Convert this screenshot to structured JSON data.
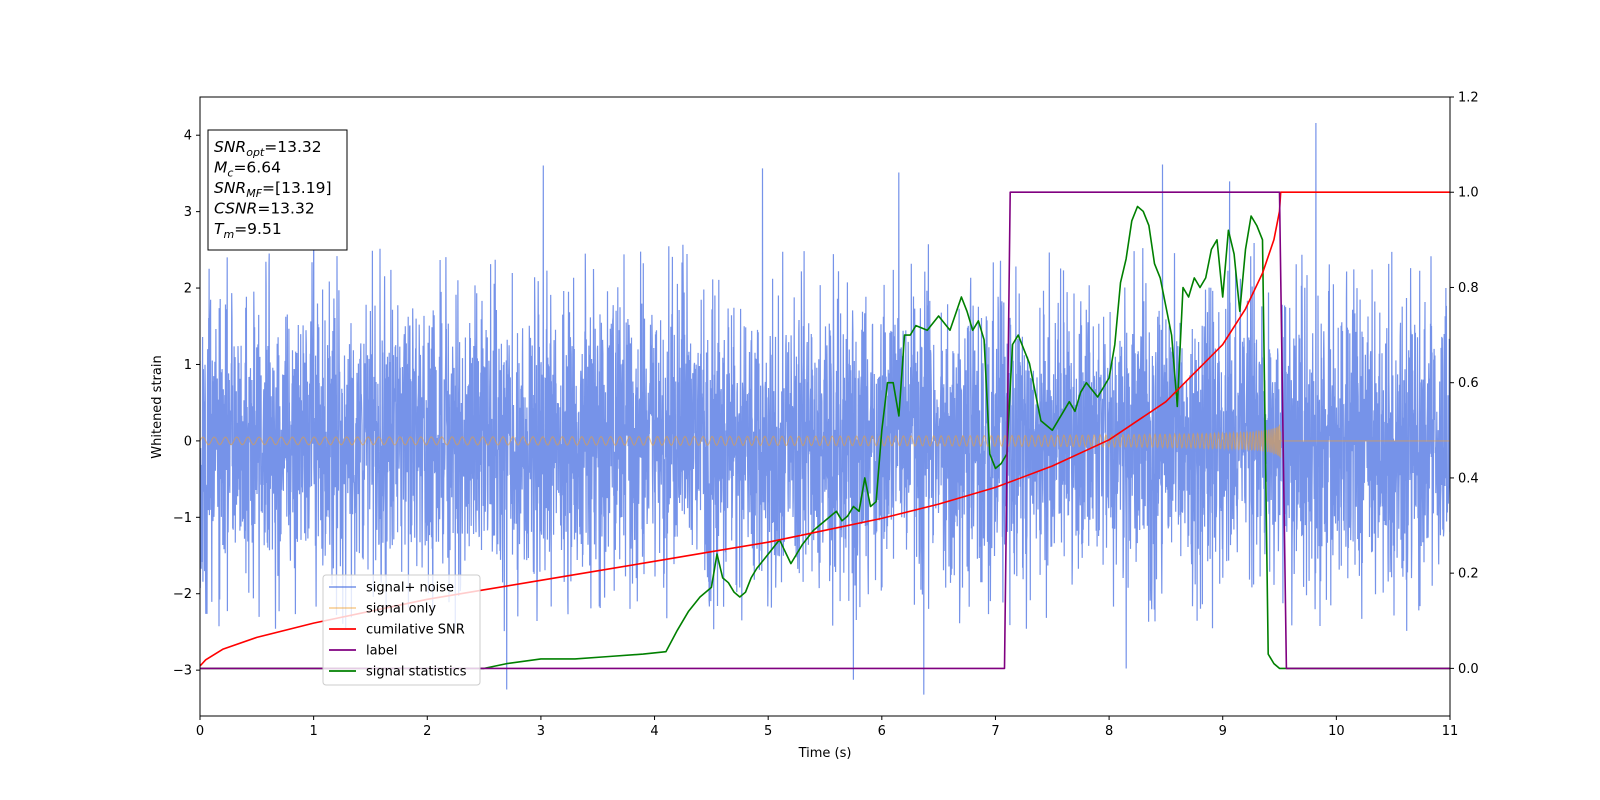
{
  "chart_data": {
    "type": "line",
    "xlabel": "Time (s)",
    "ylabel": "Whitened strain",
    "xlim": [
      0,
      11
    ],
    "ylim_left": [
      -3.6,
      4.5
    ],
    "ylim_right": [
      -0.1,
      1.2
    ],
    "x_ticks": [
      "0",
      "1",
      "2",
      "3",
      "4",
      "5",
      "6",
      "7",
      "8",
      "9",
      "10",
      "11"
    ],
    "y_ticks_left": [
      "−3",
      "−2",
      "−1",
      "0",
      "1",
      "2",
      "3",
      "4"
    ],
    "y_ticks_left_values": [
      -3,
      -2,
      -1,
      0,
      1,
      2,
      3,
      4
    ],
    "y_ticks_right": [
      "0.0",
      "0.2",
      "0.4",
      "0.6",
      "0.8",
      "1.0",
      "1.2"
    ],
    "y_ticks_right_values": [
      0.0,
      0.2,
      0.4,
      0.6,
      0.8,
      1.0,
      1.2
    ],
    "grid": false,
    "legend_position": "lower-left",
    "annotation": {
      "lines": [
        {
          "base": "SNR",
          "sub": "opt",
          "rest": "=13.32"
        },
        {
          "base": "M",
          "sub": "c",
          "rest": "=6.64"
        },
        {
          "base": "SNR",
          "sub": "MF",
          "rest": "=[13.19]"
        },
        {
          "base": "CSNR",
          "sub": "",
          "rest": "=13.32"
        },
        {
          "base": "T",
          "sub": "m",
          "rest": "=9.51"
        }
      ]
    },
    "series": [
      {
        "name": "signal+ noise",
        "color": "#4169e1",
        "axis": "left",
        "kind": "noise",
        "noise_std": 0.95,
        "typical_extremes": [
          -3.32,
          4.16
        ],
        "spike_x": [
          1.0,
          2.7,
          3.02,
          4.95,
          5.75,
          6.15,
          6.37,
          8.15,
          8.47,
          9.06,
          9.82
        ]
      },
      {
        "name": "signal only",
        "color": "#f0a030",
        "axis": "left",
        "kind": "chirp",
        "merger_time": 9.51,
        "initial_amplitude": 0.05,
        "peak_amplitude": 1.05
      },
      {
        "name": "cumilative SNR",
        "color": "#ff0000",
        "axis": "right",
        "x": [
          0,
          0.05,
          0.2,
          0.5,
          1.0,
          1.5,
          2.0,
          2.5,
          3.0,
          3.5,
          4.0,
          4.5,
          5.0,
          5.5,
          6.0,
          6.5,
          7.0,
          7.5,
          8.0,
          8.5,
          9.0,
          9.2,
          9.35,
          9.45,
          9.5,
          9.51,
          11
        ],
        "y": [
          0.005,
          0.018,
          0.04,
          0.065,
          0.095,
          0.12,
          0.145,
          0.165,
          0.185,
          0.205,
          0.225,
          0.245,
          0.265,
          0.29,
          0.315,
          0.345,
          0.38,
          0.425,
          0.48,
          0.56,
          0.68,
          0.755,
          0.83,
          0.9,
          0.96,
          1.0,
          1.0
        ]
      },
      {
        "name": "label",
        "color": "#800080",
        "axis": "right",
        "x": [
          0,
          7.08,
          7.13,
          9.5,
          9.56,
          11
        ],
        "y": [
          0,
          0,
          1,
          1,
          0,
          0
        ]
      },
      {
        "name": "signal statistics",
        "color": "#008000",
        "axis": "right",
        "x": [
          0,
          2.5,
          2.7,
          3.0,
          3.3,
          3.6,
          3.9,
          4.1,
          4.2,
          4.3,
          4.4,
          4.5,
          4.55,
          4.6,
          4.65,
          4.7,
          4.75,
          4.8,
          4.85,
          4.9,
          5.0,
          5.1,
          5.2,
          5.3,
          5.4,
          5.5,
          5.6,
          5.65,
          5.7,
          5.75,
          5.8,
          5.85,
          5.9,
          5.95,
          6.0,
          6.05,
          6.1,
          6.15,
          6.2,
          6.25,
          6.3,
          6.4,
          6.5,
          6.6,
          6.7,
          6.75,
          6.8,
          6.85,
          6.9,
          6.95,
          7.0,
          7.05,
          7.1,
          7.15,
          7.2,
          7.3,
          7.4,
          7.5,
          7.6,
          7.65,
          7.7,
          7.75,
          7.8,
          7.9,
          8.0,
          8.05,
          8.1,
          8.15,
          8.2,
          8.25,
          8.3,
          8.35,
          8.4,
          8.45,
          8.5,
          8.55,
          8.6,
          8.65,
          8.7,
          8.75,
          8.8,
          8.85,
          8.9,
          8.95,
          9.0,
          9.05,
          9.1,
          9.15,
          9.2,
          9.25,
          9.3,
          9.35,
          9.4,
          9.45,
          9.5,
          9.55,
          11
        ],
        "y": [
          0,
          0.0,
          0.01,
          0.02,
          0.02,
          0.025,
          0.03,
          0.035,
          0.08,
          0.12,
          0.15,
          0.17,
          0.24,
          0.19,
          0.18,
          0.16,
          0.15,
          0.16,
          0.19,
          0.21,
          0.24,
          0.27,
          0.22,
          0.26,
          0.29,
          0.31,
          0.33,
          0.31,
          0.32,
          0.34,
          0.33,
          0.4,
          0.34,
          0.35,
          0.5,
          0.6,
          0.6,
          0.53,
          0.7,
          0.7,
          0.72,
          0.71,
          0.74,
          0.71,
          0.78,
          0.75,
          0.71,
          0.73,
          0.69,
          0.45,
          0.42,
          0.43,
          0.45,
          0.68,
          0.7,
          0.64,
          0.52,
          0.5,
          0.54,
          0.56,
          0.54,
          0.58,
          0.6,
          0.57,
          0.61,
          0.68,
          0.81,
          0.86,
          0.94,
          0.97,
          0.96,
          0.93,
          0.85,
          0.82,
          0.76,
          0.7,
          0.55,
          0.8,
          0.78,
          0.82,
          0.8,
          0.82,
          0.88,
          0.9,
          0.78,
          0.92,
          0.87,
          0.75,
          0.88,
          0.95,
          0.93,
          0.9,
          0.03,
          0.01,
          0.0,
          0.0,
          0.0
        ]
      }
    ]
  }
}
